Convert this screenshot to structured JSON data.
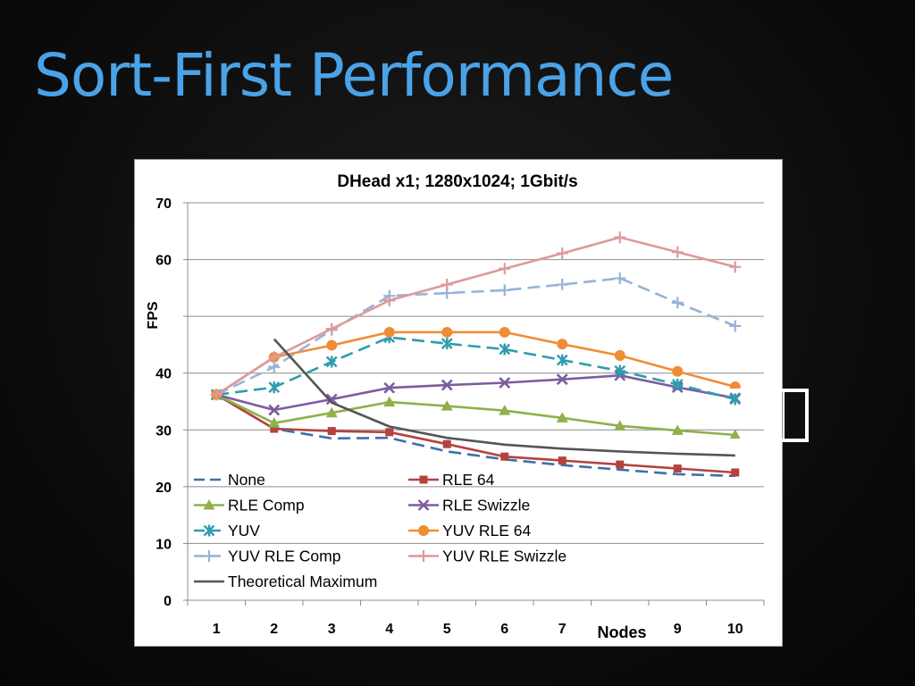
{
  "slide": {
    "title": "Sort-First Performance"
  },
  "chart_data": {
    "type": "line",
    "title": "DHead x1; 1280x1024; 1Gbit/s",
    "xlabel": "Nodes",
    "ylabel": "FPS",
    "ylim": [
      0,
      70
    ],
    "yticks": [
      0,
      10,
      20,
      30,
      40,
      50,
      60,
      70
    ],
    "ytick_labels": [
      "0",
      "10",
      "20",
      "30",
      "40",
      "",
      "60",
      "70"
    ],
    "categories": [
      1,
      2,
      3,
      4,
      5,
      6,
      7,
      8,
      9,
      10
    ],
    "xtick_labels": [
      "1",
      "2",
      "3",
      "4",
      "5",
      "6",
      "7",
      "",
      "9",
      "10"
    ],
    "grid": "horizontal",
    "legend_position": "bottom-left",
    "series": [
      {
        "name": "None",
        "color": "#3f6fa8",
        "dash": "dashed",
        "marker": "none",
        "values": [
          36.2,
          30.2,
          28.5,
          28.6,
          26.2,
          24.8,
          23.8,
          23.0,
          22.2,
          21.9
        ]
      },
      {
        "name": "RLE 64",
        "color": "#b4433f",
        "dash": "solid",
        "marker": "square",
        "values": [
          36.2,
          30.2,
          29.8,
          29.6,
          27.5,
          25.3,
          24.6,
          23.9,
          23.2,
          22.5
        ]
      },
      {
        "name": "RLE Comp",
        "color": "#8fb04a",
        "dash": "solid",
        "marker": "triangle",
        "values": [
          36.2,
          31.2,
          33.0,
          34.9,
          34.2,
          33.4,
          32.1,
          30.7,
          29.9,
          29.1
        ]
      },
      {
        "name": "RLE Swizzle",
        "color": "#7d5c9f",
        "dash": "solid",
        "marker": "x",
        "values": [
          36.2,
          33.5,
          35.4,
          37.4,
          37.9,
          38.3,
          38.9,
          39.6,
          37.5,
          35.6
        ]
      },
      {
        "name": "YUV",
        "color": "#2f9cb0",
        "dash": "dashed",
        "marker": "star",
        "values": [
          36.2,
          37.5,
          42.0,
          46.3,
          45.2,
          44.2,
          42.3,
          40.4,
          38.0,
          35.4
        ]
      },
      {
        "name": "YUV RLE 64",
        "color": "#f08c35",
        "dash": "solid",
        "marker": "circle",
        "values": [
          36.2,
          42.8,
          44.9,
          47.2,
          47.2,
          47.2,
          45.1,
          43.1,
          40.3,
          37.6
        ]
      },
      {
        "name": "YUV RLE Comp",
        "color": "#97b3d9",
        "dash": "dashed",
        "marker": "plus",
        "values": [
          36.2,
          41.1,
          47.6,
          53.6,
          54.1,
          54.6,
          55.6,
          56.7,
          52.4,
          48.3
        ]
      },
      {
        "name": "YUV RLE Swizzle",
        "color": "#de9a9a",
        "dash": "solid",
        "marker": "plus",
        "values": [
          36.2,
          42.8,
          47.8,
          52.8,
          55.6,
          58.4,
          61.1,
          63.9,
          61.3,
          58.7
        ]
      },
      {
        "name": "Theoretical Maximum",
        "color": "#555555",
        "dash": "solid",
        "marker": "none",
        "values": [
          null,
          46.0,
          34.8,
          30.6,
          28.6,
          27.4,
          26.7,
          26.2,
          25.8,
          25.5
        ]
      }
    ]
  }
}
